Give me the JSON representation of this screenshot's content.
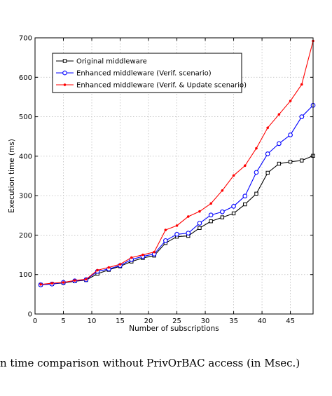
{
  "caption": "n time comparison without PrivOrBAC access (in Msec.)",
  "chart_data": {
    "type": "line",
    "xlabel": "Number of subscriptions",
    "ylabel": "Execution time (ms)",
    "xlim": [
      0,
      49
    ],
    "ylim": [
      0,
      700
    ],
    "xticks": [
      0,
      5,
      10,
      15,
      20,
      25,
      30,
      35,
      40,
      45
    ],
    "yticks": [
      0,
      100,
      200,
      300,
      400,
      500,
      600,
      700
    ],
    "grid": true,
    "legend_position": "top-left",
    "x": [
      1,
      3,
      5,
      7,
      9,
      11,
      13,
      15,
      17,
      19,
      21,
      23,
      25,
      27,
      29,
      31,
      33,
      35,
      37,
      39,
      41,
      43,
      45,
      47,
      49
    ],
    "series": [
      {
        "name": "Original middleware",
        "color": "#000000",
        "marker": "square",
        "values": [
          74,
          76,
          79,
          83,
          86,
          102,
          112,
          121,
          133,
          142,
          148,
          180,
          196,
          198,
          218,
          235,
          245,
          255,
          278,
          305,
          358,
          381,
          386,
          389,
          401
        ]
      },
      {
        "name": "Enhanced middleware (Verif. scenario)",
        "color": "#0000ff",
        "marker": "circle",
        "values": [
          74,
          76,
          80,
          84,
          87,
          108,
          114,
          123,
          138,
          146,
          152,
          186,
          202,
          205,
          230,
          251,
          259,
          273,
          299,
          359,
          406,
          432,
          454,
          500,
          529
        ]
      },
      {
        "name": "Enhanced middleware (Verif. & Update scenario)",
        "color": "#ff0000",
        "marker": "dot",
        "values": [
          75,
          78,
          80,
          85,
          88,
          111,
          118,
          126,
          143,
          150,
          157,
          213,
          224,
          247,
          260,
          280,
          313,
          351,
          376,
          420,
          472,
          506,
          540,
          582,
          692
        ]
      }
    ]
  }
}
